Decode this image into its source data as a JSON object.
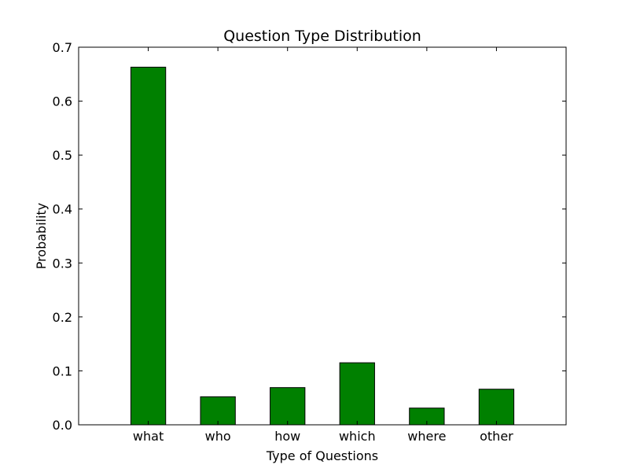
{
  "chart_data": {
    "type": "bar",
    "title": "Question Type Distribution",
    "xlabel": "Type of Questions",
    "ylabel": "Probability",
    "categories": [
      "what",
      "who",
      "how",
      "which",
      "where",
      "other"
    ],
    "values": [
      0.663,
      0.052,
      0.069,
      0.115,
      0.031,
      0.066
    ],
    "ylim": [
      0,
      0.7
    ],
    "yticks": [
      0.0,
      0.1,
      0.2,
      0.3,
      0.4,
      0.5,
      0.6,
      0.7
    ],
    "ytick_labels": [
      "0.0",
      "0.1",
      "0.2",
      "0.3",
      "0.4",
      "0.5",
      "0.6",
      "0.7"
    ],
    "bar_color": "#008000",
    "edge_color": "#000000",
    "grid": false,
    "legend": false
  }
}
